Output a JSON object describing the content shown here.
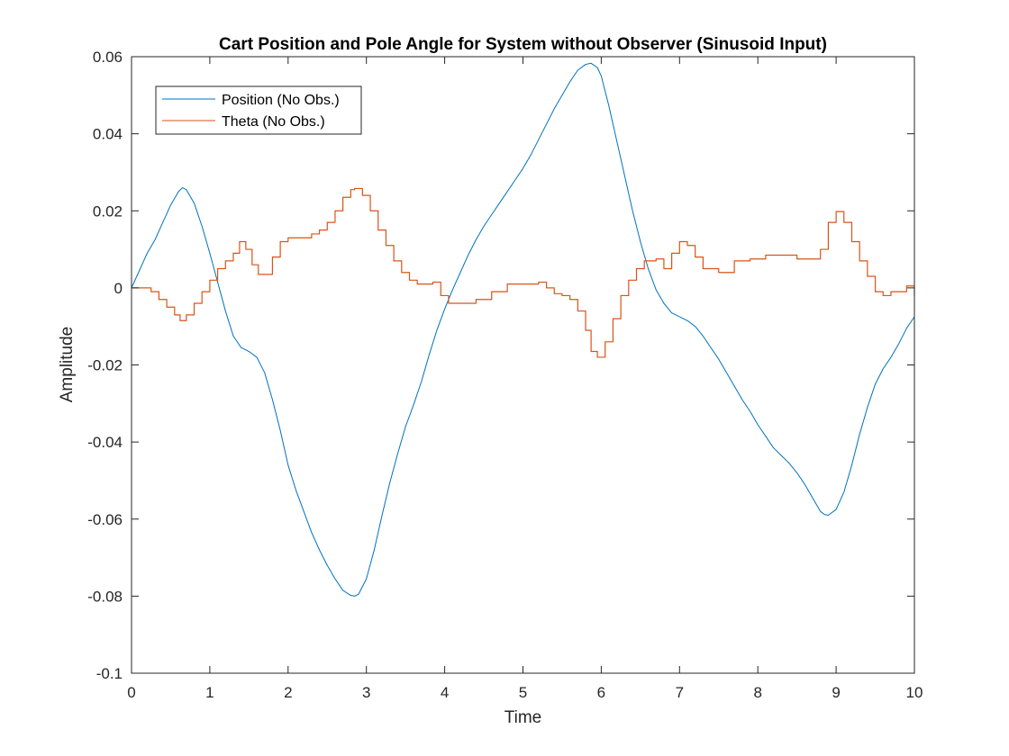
{
  "chart_data": {
    "type": "line",
    "title": "Cart Position and Pole Angle for System without Observer (Sinusoid Input)",
    "xlabel": "Time",
    "ylabel": "Amplitude",
    "xlim": [
      0,
      10
    ],
    "ylim": [
      -0.1,
      0.06
    ],
    "x_ticks": [
      0,
      1,
      2,
      3,
      4,
      5,
      6,
      7,
      8,
      9,
      10
    ],
    "x_tick_labels": [
      "0",
      "1",
      "2",
      "3",
      "4",
      "5",
      "6",
      "7",
      "8",
      "9",
      "10"
    ],
    "y_ticks": [
      -0.1,
      -0.08,
      -0.06,
      -0.04,
      -0.02,
      0,
      0.02,
      0.04,
      0.06
    ],
    "y_tick_labels": [
      "-0.1",
      "-0.08",
      "-0.06",
      "-0.04",
      "-0.02",
      "0",
      "0.02",
      "0.04",
      "0.06"
    ],
    "grid": false,
    "legend_position": "top-left",
    "series": [
      {
        "name": "Position (No Obs.)",
        "color": "#0072BD",
        "style": "smooth",
        "x": [
          0,
          0.1,
          0.2,
          0.3,
          0.4,
          0.5,
          0.6,
          0.65,
          0.7,
          0.8,
          0.9,
          1.0,
          1.1,
          1.2,
          1.3,
          1.4,
          1.5,
          1.6,
          1.7,
          1.8,
          1.9,
          2.0,
          2.1,
          2.2,
          2.3,
          2.4,
          2.5,
          2.6,
          2.7,
          2.8,
          2.85,
          2.9,
          3.0,
          3.1,
          3.2,
          3.3,
          3.4,
          3.5,
          3.6,
          3.7,
          3.8,
          3.9,
          4.0,
          4.1,
          4.2,
          4.3,
          4.4,
          4.5,
          4.6,
          4.7,
          4.8,
          4.9,
          5.0,
          5.1,
          5.2,
          5.3,
          5.4,
          5.5,
          5.6,
          5.7,
          5.8,
          5.87,
          5.95,
          6.0,
          6.1,
          6.2,
          6.3,
          6.4,
          6.5,
          6.6,
          6.7,
          6.8,
          6.9,
          7.0,
          7.1,
          7.2,
          7.3,
          7.4,
          7.5,
          7.6,
          7.7,
          7.8,
          7.9,
          8.0,
          8.1,
          8.2,
          8.3,
          8.4,
          8.5,
          8.6,
          8.7,
          8.8,
          8.85,
          8.9,
          9.0,
          9.1,
          9.2,
          9.3,
          9.4,
          9.5,
          9.6,
          9.7,
          9.8,
          9.9,
          10.0
        ],
        "y": [
          0,
          0.0045,
          0.009,
          0.0125,
          0.017,
          0.0215,
          0.025,
          0.026,
          0.0255,
          0.022,
          0.016,
          0.009,
          0.0015,
          -0.006,
          -0.0125,
          -0.0155,
          -0.0165,
          -0.018,
          -0.022,
          -0.029,
          -0.037,
          -0.046,
          -0.0525,
          -0.058,
          -0.0635,
          -0.068,
          -0.072,
          -0.0755,
          -0.0785,
          -0.0798,
          -0.08,
          -0.0795,
          -0.0755,
          -0.068,
          -0.059,
          -0.0505,
          -0.043,
          -0.036,
          -0.0305,
          -0.0245,
          -0.0175,
          -0.011,
          -0.0055,
          -0.0005,
          0.004,
          0.0085,
          0.0125,
          0.016,
          0.019,
          0.022,
          0.025,
          0.028,
          0.031,
          0.0345,
          0.0385,
          0.0425,
          0.0465,
          0.05,
          0.0535,
          0.0565,
          0.058,
          0.0583,
          0.0572,
          0.055,
          0.047,
          0.038,
          0.029,
          0.02,
          0.012,
          0.005,
          -0.0005,
          -0.004,
          -0.0065,
          -0.0075,
          -0.0085,
          -0.01,
          -0.0125,
          -0.0155,
          -0.0185,
          -0.022,
          -0.0255,
          -0.029,
          -0.032,
          -0.0355,
          -0.0385,
          -0.0415,
          -0.0435,
          -0.0455,
          -0.048,
          -0.051,
          -0.0545,
          -0.058,
          -0.0588,
          -0.059,
          -0.0575,
          -0.053,
          -0.046,
          -0.038,
          -0.031,
          -0.025,
          -0.021,
          -0.018,
          -0.0145,
          -0.0105,
          -0.0075
        ]
      },
      {
        "name": "Theta (No Obs.)",
        "color": "#D95319",
        "style": "step",
        "x": [
          0,
          0.15,
          0.25,
          0.35,
          0.45,
          0.55,
          0.62,
          0.7,
          0.8,
          0.9,
          1.0,
          1.1,
          1.2,
          1.3,
          1.38,
          1.46,
          1.54,
          1.62,
          1.7,
          1.8,
          1.9,
          2.0,
          2.1,
          2.2,
          2.3,
          2.4,
          2.5,
          2.6,
          2.7,
          2.8,
          2.85,
          2.95,
          3.05,
          3.15,
          3.25,
          3.35,
          3.45,
          3.55,
          3.65,
          3.75,
          3.85,
          3.95,
          4.05,
          4.2,
          4.4,
          4.6,
          4.8,
          5.0,
          5.2,
          5.3,
          5.4,
          5.5,
          5.6,
          5.7,
          5.8,
          5.87,
          5.95,
          6.05,
          6.15,
          6.25,
          6.35,
          6.45,
          6.55,
          6.7,
          6.8,
          6.9,
          7.0,
          7.1,
          7.2,
          7.3,
          7.5,
          7.7,
          7.9,
          8.1,
          8.3,
          8.5,
          8.7,
          8.8,
          8.9,
          9.0,
          9.1,
          9.2,
          9.3,
          9.4,
          9.5,
          9.6,
          9.7,
          9.8,
          9.9,
          10.0
        ],
        "y": [
          0,
          0,
          -0.001,
          -0.003,
          -0.005,
          -0.007,
          -0.0085,
          -0.007,
          -0.004,
          -0.001,
          0.002,
          0.005,
          0.007,
          0.009,
          0.012,
          0.01,
          0.006,
          0.0035,
          0.0035,
          0.008,
          0.012,
          0.013,
          0.013,
          0.013,
          0.014,
          0.015,
          0.017,
          0.02,
          0.0235,
          0.0255,
          0.0258,
          0.024,
          0.02,
          0.015,
          0.011,
          0.007,
          0.004,
          0.002,
          0.001,
          0.001,
          0.0015,
          -0.002,
          -0.004,
          -0.004,
          -0.003,
          -0.001,
          0.001,
          0.001,
          0.0015,
          0,
          -0.0015,
          -0.002,
          -0.003,
          -0.006,
          -0.011,
          -0.0165,
          -0.018,
          -0.014,
          -0.008,
          -0.002,
          0.002,
          0.005,
          0.007,
          0.0075,
          0.005,
          0.009,
          0.012,
          0.011,
          0.008,
          0.005,
          0.004,
          0.007,
          0.0075,
          0.0085,
          0.0085,
          0.0075,
          0.0075,
          0.01,
          0.017,
          0.0198,
          0.017,
          0.012,
          0.007,
          0.003,
          -0.001,
          -0.002,
          -0.001,
          -0.001,
          0.0005,
          -0.002
        ]
      }
    ]
  }
}
